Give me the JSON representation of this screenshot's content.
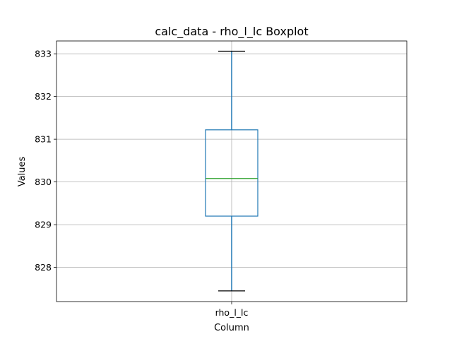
{
  "chart_data": {
    "type": "boxplot",
    "title": "calc_data - rho_l_lc Boxplot",
    "xlabel": "Column",
    "ylabel": "Values",
    "categories": [
      "rho_l_lc"
    ],
    "boxes": [
      {
        "category": "rho_l_lc",
        "whisker_low": 827.45,
        "q1": 829.2,
        "median": 830.08,
        "q3": 831.22,
        "whisker_high": 833.06
      }
    ],
    "ylim": [
      827.2,
      833.3
    ],
    "yticks": [
      828,
      829,
      830,
      831,
      832,
      833
    ],
    "ytick_labels": [
      "828",
      "829",
      "830",
      "831",
      "832",
      "833"
    ],
    "grid": true,
    "colors": {
      "box": "#1f77b4",
      "whisker": "#1f77b4",
      "cap": "#000000",
      "median": "#2ca02c",
      "grid": "#b0b0b0"
    }
  }
}
